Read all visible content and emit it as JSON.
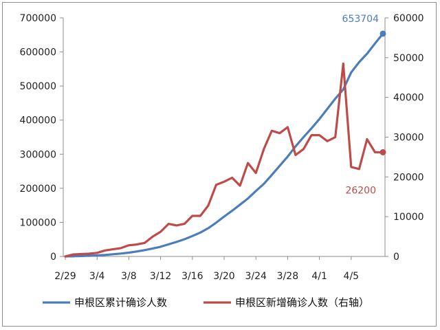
{
  "chart_data": {
    "type": "line",
    "grid": false,
    "legend_position": "bottom",
    "x": [
      "2/29",
      "3/1",
      "3/2",
      "3/3",
      "3/4",
      "3/5",
      "3/6",
      "3/7",
      "3/8",
      "3/9",
      "3/10",
      "3/11",
      "3/12",
      "3/13",
      "3/14",
      "3/15",
      "3/16",
      "3/17",
      "3/18",
      "3/19",
      "3/20",
      "3/21",
      "3/22",
      "3/23",
      "3/24",
      "3/25",
      "3/26",
      "3/27",
      "3/28",
      "3/29",
      "3/30",
      "3/31",
      "4/1",
      "4/2",
      "4/3",
      "4/4",
      "4/5",
      "4/6",
      "4/7",
      "4/8",
      "4/9"
    ],
    "x_tick_labels": [
      "2/29",
      "3/4",
      "3/8",
      "3/12",
      "3/16",
      "3/20",
      "3/24",
      "3/28",
      "4/1",
      "4/5"
    ],
    "y_left": {
      "ylim": [
        0,
        700000
      ],
      "ticks": [
        "0",
        "100000",
        "200000",
        "300000",
        "400000",
        "500000",
        "600000",
        "700000"
      ]
    },
    "y_right": {
      "ylim": [
        0,
        60000
      ],
      "ticks": [
        "0",
        "10000",
        "20000",
        "30000",
        "40000",
        "50000",
        "60000"
      ]
    },
    "series": [
      {
        "name": "申根区累计确诊人数",
        "axis": "left",
        "color": "#4a7ebb",
        "values": [
          0,
          500,
          1200,
          2000,
          3000,
          4500,
          6500,
          8500,
          11000,
          14500,
          18500,
          23500,
          28500,
          35500,
          42500,
          50500,
          60000,
          70000,
          83000,
          99000,
          117000,
          134000,
          152000,
          170000,
          192000,
          213000,
          239000,
          266000,
          293000,
          323000,
          350000,
          376000,
          403000,
          433000,
          463000,
          490000,
          540000,
          570000,
          595000,
          625000,
          653704
        ],
        "end_label": "653704"
      },
      {
        "name": "申根区新增确诊人数（右轴）",
        "axis": "right",
        "color": "#be4b48",
        "values": [
          0,
          500,
          600,
          700,
          900,
          1500,
          1800,
          2100,
          2800,
          3000,
          3400,
          5000,
          6200,
          8200,
          7800,
          8200,
          10200,
          10200,
          12800,
          18000,
          18800,
          19800,
          17800,
          23500,
          21000,
          27000,
          31600,
          31000,
          32500,
          25500,
          27000,
          30500,
          30500,
          29000,
          30000,
          48500,
          22500,
          22000,
          29500,
          26200,
          26200
        ],
        "end_label": "26200"
      }
    ]
  }
}
